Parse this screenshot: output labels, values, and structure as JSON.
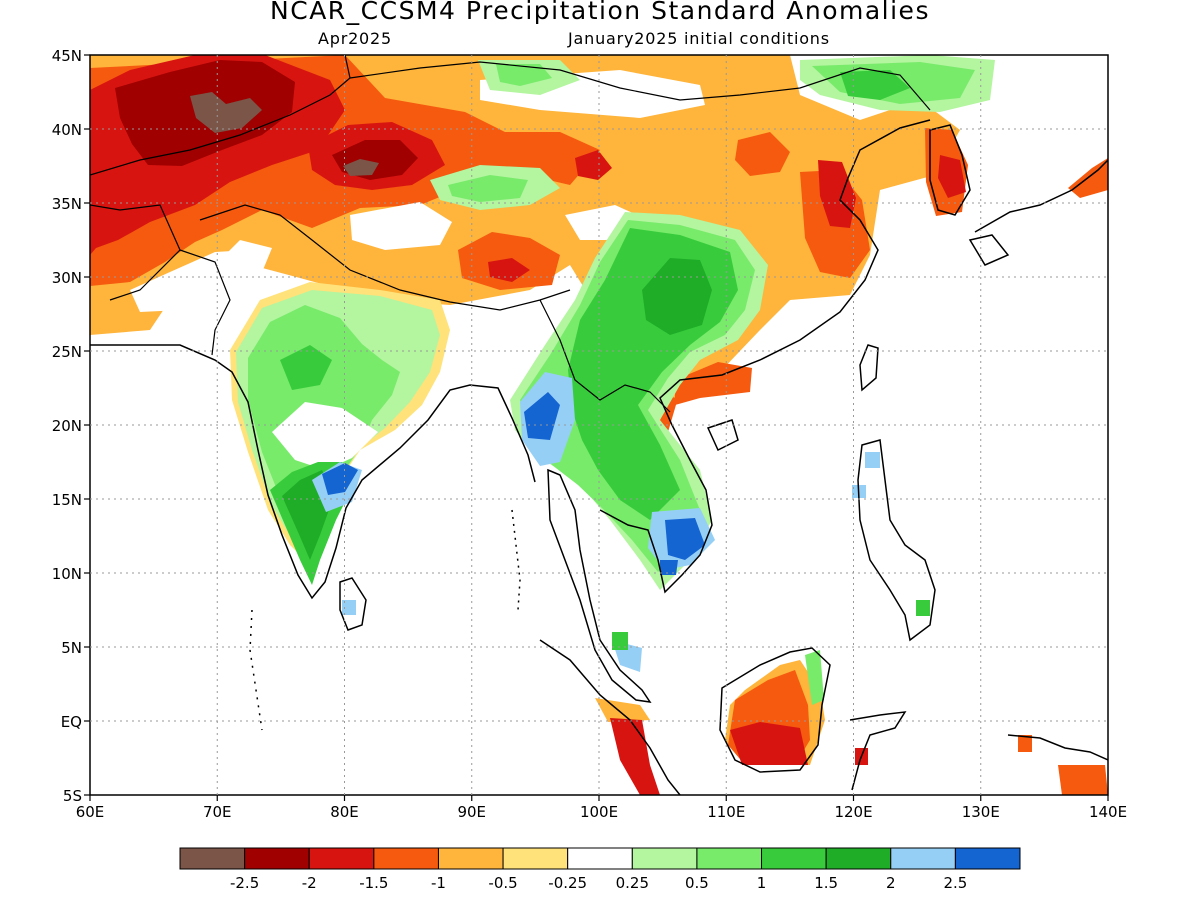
{
  "header": {
    "title": "NCAR_CCSM4 Precipitation Standard Anomalies",
    "subtitle_left": "Apr2025",
    "subtitle_right": "January2025 initial conditions"
  },
  "map": {
    "lon_range": [
      60,
      140
    ],
    "lat_range": [
      -5,
      45
    ],
    "lon_ticks": [
      "60E",
      "70E",
      "80E",
      "90E",
      "100E",
      "110E",
      "120E",
      "130E",
      "140E"
    ],
    "lat_ticks": [
      "45N",
      "40N",
      "35N",
      "30N",
      "25N",
      "20N",
      "15N",
      "10N",
      "5N",
      "EQ",
      "5S"
    ]
  },
  "colorbar": {
    "colors": [
      "#7a5548",
      "#a00000",
      "#d81410",
      "#f55a0f",
      "#ffb43b",
      "#ffe27a",
      "#ffffff",
      "#b4f5a0",
      "#78eb6b",
      "#38cc3c",
      "#1fad28",
      "#96cff5",
      "#1464d2"
    ],
    "labels": [
      "-2.5",
      "-2",
      "-1.5",
      "-1",
      "-0.5",
      "-0.25",
      "0.25",
      "0.5",
      "1",
      "1.5",
      "2",
      "2.5"
    ]
  }
}
